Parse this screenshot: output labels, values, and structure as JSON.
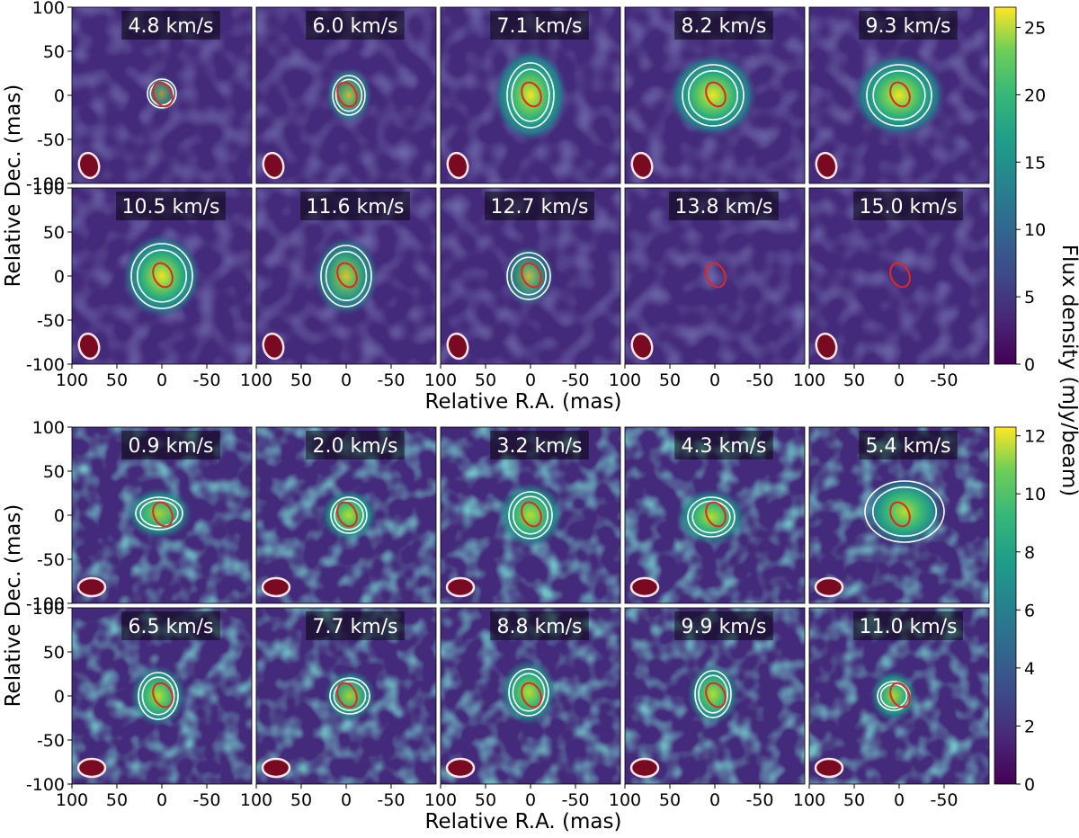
{
  "figure": {
    "colorbar_label": "Flux density (mJy/beam)",
    "colormap": "viridis",
    "contour_color": "#ffffff",
    "source_ellipse_color": "#e8251c",
    "beam_color": "#7a0a22"
  },
  "chart_data": [
    {
      "type": "heatmap",
      "panel_labels": [
        "4.8 km/s",
        "6.0 km/s",
        "7.1 km/s",
        "8.2 km/s",
        "9.3 km/s",
        "10.5 km/s",
        "11.6 km/s",
        "12.7 km/s",
        "13.8 km/s",
        "15.0 km/s"
      ],
      "peak_flux": [
        6,
        10,
        19,
        22,
        25,
        17,
        13,
        9,
        3,
        2
      ],
      "xlabel": "Relative R.A. (mas)",
      "ylabel": "Relative Dec. (mas)",
      "xlim": [
        100,
        -100
      ],
      "ylim": [
        -100,
        100
      ],
      "xticks": [
        "100",
        "50",
        "0",
        "-50"
      ],
      "yticks": [
        "100",
        "50",
        "0",
        "-50",
        "-100"
      ],
      "colorbar": {
        "range": [
          0,
          26.5
        ],
        "ticks": [
          "0",
          "5",
          "10",
          "15",
          "20",
          "25"
        ]
      }
    },
    {
      "type": "heatmap",
      "panel_labels": [
        "0.9 km/s",
        "2.0 km/s",
        "3.2 km/s",
        "4.3 km/s",
        "5.4 km/s",
        "6.5 km/s",
        "7.7 km/s",
        "8.8 km/s",
        "9.9 km/s",
        "11.0 km/s"
      ],
      "peak_flux": [
        7,
        8,
        9,
        9,
        8,
        8,
        7,
        10,
        11,
        7
      ],
      "xlabel": "Relative R.A. (mas)",
      "ylabel": "Relative Dec. (mas)",
      "xlim": [
        100,
        -100
      ],
      "ylim": [
        -100,
        100
      ],
      "xticks": [
        "100",
        "50",
        "0",
        "-50"
      ],
      "yticks": [
        "100",
        "50",
        "0",
        "-50",
        "-100"
      ],
      "colorbar": {
        "range": [
          0,
          12.3
        ],
        "ticks": [
          "0",
          "2",
          "4",
          "6",
          "8",
          "10",
          "12"
        ]
      }
    }
  ]
}
